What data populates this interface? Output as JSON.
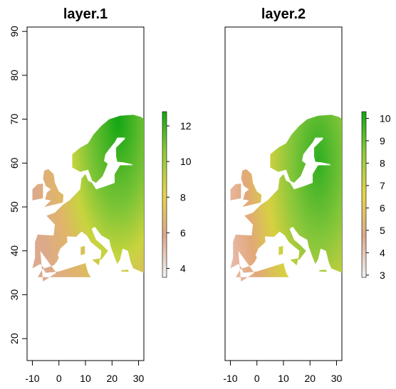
{
  "panels": [
    {
      "title": "layer.1",
      "legend": {
        "min": 3.5,
        "max": 12.8,
        "ticks": [
          "4",
          "6",
          "8",
          "10",
          "12"
        ],
        "tick_values": [
          4,
          6,
          8,
          10,
          12
        ]
      }
    },
    {
      "title": "layer.2",
      "legend": {
        "min": 2.9,
        "max": 10.3,
        "ticks": [
          "3",
          "4",
          "5",
          "6",
          "7",
          "8",
          "9",
          "10"
        ],
        "tick_values": [
          3,
          4,
          5,
          6,
          7,
          8,
          9,
          10
        ]
      }
    }
  ],
  "y_ticks": [
    "20",
    "30",
    "40",
    "50",
    "60",
    "70",
    "80",
    "90"
  ],
  "y_tick_values": [
    20,
    30,
    40,
    50,
    60,
    70,
    80,
    90
  ],
  "x_ticks": [
    "-10",
    "0",
    "10",
    "20",
    "30"
  ],
  "x_tick_values": [
    -10,
    0,
    10,
    20,
    30
  ],
  "colors": {
    "low": "#f2f2f2",
    "mid_low": "#dca98c",
    "mid": "#e6d44a",
    "mid_high": "#8fcb3a",
    "high": "#14a614"
  },
  "map_extent": {
    "lon": [
      -12,
      32
    ],
    "lat": [
      15,
      91
    ]
  }
}
